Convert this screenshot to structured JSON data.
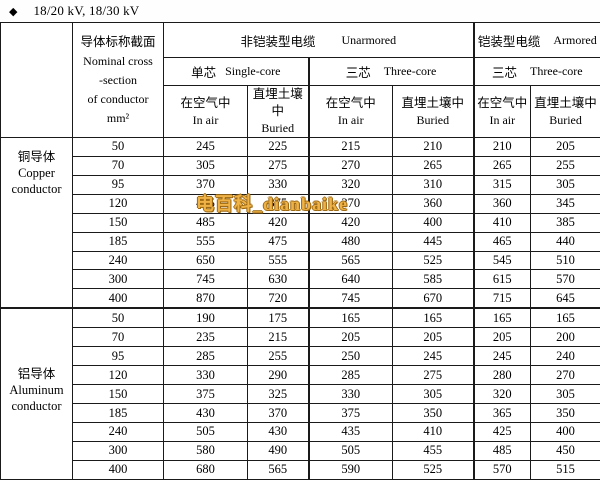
{
  "title": {
    "bullet": "◆",
    "text": "18/20 kV, 18/30 kV"
  },
  "watermark": {
    "text": "电百科_dianbaike",
    "fill_color": "#EFB246",
    "outline_color": "#9C6812"
  },
  "table": {
    "corner": "",
    "col1_header_lines": [
      "导体标称截面",
      "Nominal cross",
      "-section",
      "of conductor",
      "mm²"
    ],
    "groups": {
      "unarmored": {
        "zh": "非铠装型电缆",
        "en": "Unarmored"
      },
      "armored": {
        "zh": "铠装型电缆",
        "en": "Armored"
      },
      "single_core": {
        "zh": "单芯",
        "en": "Single-core"
      },
      "three_core_unarmored": {
        "zh": "三芯",
        "en": "Three-core"
      },
      "three_core_armored": {
        "zh": "三芯",
        "en": "Three-core"
      }
    },
    "leaf_headers": [
      {
        "zh": "在空气中",
        "en": "In air"
      },
      {
        "zh": "直埋土壤中",
        "en": "Buried"
      },
      {
        "zh": "在空气中",
        "en": "In air"
      },
      {
        "zh": "直埋土壤中",
        "en": "Buried"
      },
      {
        "zh": "在空气中",
        "en": "In air"
      },
      {
        "zh": "直埋土壤中",
        "en": "Buried"
      }
    ],
    "sections": [
      {
        "name": "copper-conductor",
        "label_lines": [
          "铜导体",
          "Copper",
          "conductor"
        ],
        "rows": [
          {
            "size": 50,
            "values": [
              245,
              225,
              215,
              210,
              210,
              205
            ]
          },
          {
            "size": 70,
            "values": [
              305,
              275,
              270,
              265,
              265,
              255
            ]
          },
          {
            "size": 95,
            "values": [
              370,
              330,
              320,
              310,
              315,
              305
            ]
          },
          {
            "size": 120,
            "values": [
              425,
              375,
              370,
              360,
              360,
              345
            ]
          },
          {
            "size": 150,
            "values": [
              485,
              420,
              420,
              400,
              410,
              385
            ]
          },
          {
            "size": 185,
            "values": [
              555,
              475,
              480,
              445,
              465,
              440
            ]
          },
          {
            "size": 240,
            "values": [
              650,
              555,
              565,
              525,
              545,
              510
            ]
          },
          {
            "size": 300,
            "values": [
              745,
              630,
              640,
              585,
              615,
              570
            ]
          },
          {
            "size": 400,
            "values": [
              870,
              720,
              745,
              670,
              715,
              645
            ]
          }
        ]
      },
      {
        "name": "aluminum-conductor",
        "label_lines": [
          "铝导体",
          "Aluminum",
          "conductor"
        ],
        "rows": [
          {
            "size": 50,
            "values": [
              190,
              175,
              165,
              165,
              165,
              165
            ]
          },
          {
            "size": 70,
            "values": [
              235,
              215,
              205,
              205,
              205,
              200
            ]
          },
          {
            "size": 95,
            "values": [
              285,
              255,
              250,
              245,
              245,
              240
            ]
          },
          {
            "size": 120,
            "values": [
              330,
              290,
              285,
              275,
              280,
              270
            ]
          },
          {
            "size": 150,
            "values": [
              375,
              325,
              330,
              305,
              320,
              305
            ]
          },
          {
            "size": 185,
            "values": [
              430,
              370,
              375,
              350,
              365,
              350
            ]
          },
          {
            "size": 240,
            "values": [
              505,
              430,
              435,
              410,
              425,
              400
            ]
          },
          {
            "size": 300,
            "values": [
              580,
              490,
              505,
              455,
              485,
              450
            ]
          },
          {
            "size": 400,
            "values": [
              680,
              565,
              590,
              525,
              570,
              515
            ]
          }
        ]
      }
    ]
  }
}
